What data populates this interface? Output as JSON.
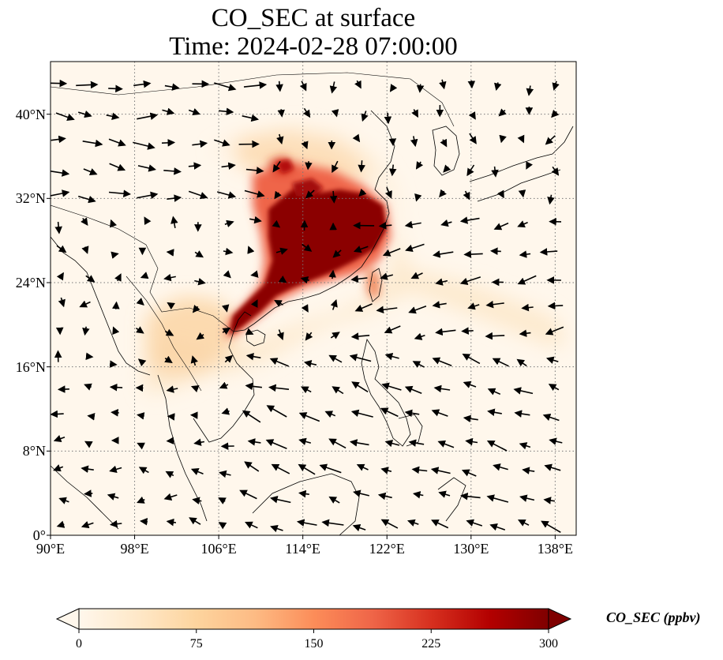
{
  "title": {
    "line1": "CO_SEC at surface",
    "line2": "Time: 2024-02-28 07:00:00"
  },
  "map": {
    "variable": "CO_SEC",
    "level": "surface",
    "projection": "PlateCarree",
    "lon_range": [
      90,
      140
    ],
    "lat_range": [
      0,
      45
    ],
    "lon_ticks": [
      90,
      98,
      106,
      114,
      122,
      130,
      138
    ],
    "lat_ticks": [
      0,
      8,
      16,
      24,
      32,
      40
    ],
    "lon_tick_labels": [
      "90°E",
      "98°E",
      "106°E",
      "114°E",
      "122°E",
      "130°E",
      "138°E"
    ],
    "lat_tick_labels": [
      "0°",
      "8°N",
      "16°N",
      "24°N",
      "32°N",
      "40°N"
    ],
    "gridlines": "dotted",
    "coastlines": true,
    "wind_vectors": true
  },
  "colorbar": {
    "label": "CO_SEC (ppbv)",
    "colormap": "OrRd",
    "min": 0,
    "max": 300,
    "extend": "both",
    "ticks": [
      0,
      75,
      150,
      225,
      300
    ],
    "tick_labels": [
      "0",
      "75",
      "150",
      "225",
      "300"
    ],
    "colors": [
      "#fff7ec",
      "#fee8c8",
      "#fdd49e",
      "#fdbb84",
      "#fc8d59",
      "#ef6548",
      "#d7301f",
      "#b30000",
      "#7f0000"
    ]
  },
  "plume": {
    "max_color": "#7f0000",
    "mid_color": "#e34a33",
    "low_color": "#fdd49e",
    "background_color": "#fff7ec"
  }
}
